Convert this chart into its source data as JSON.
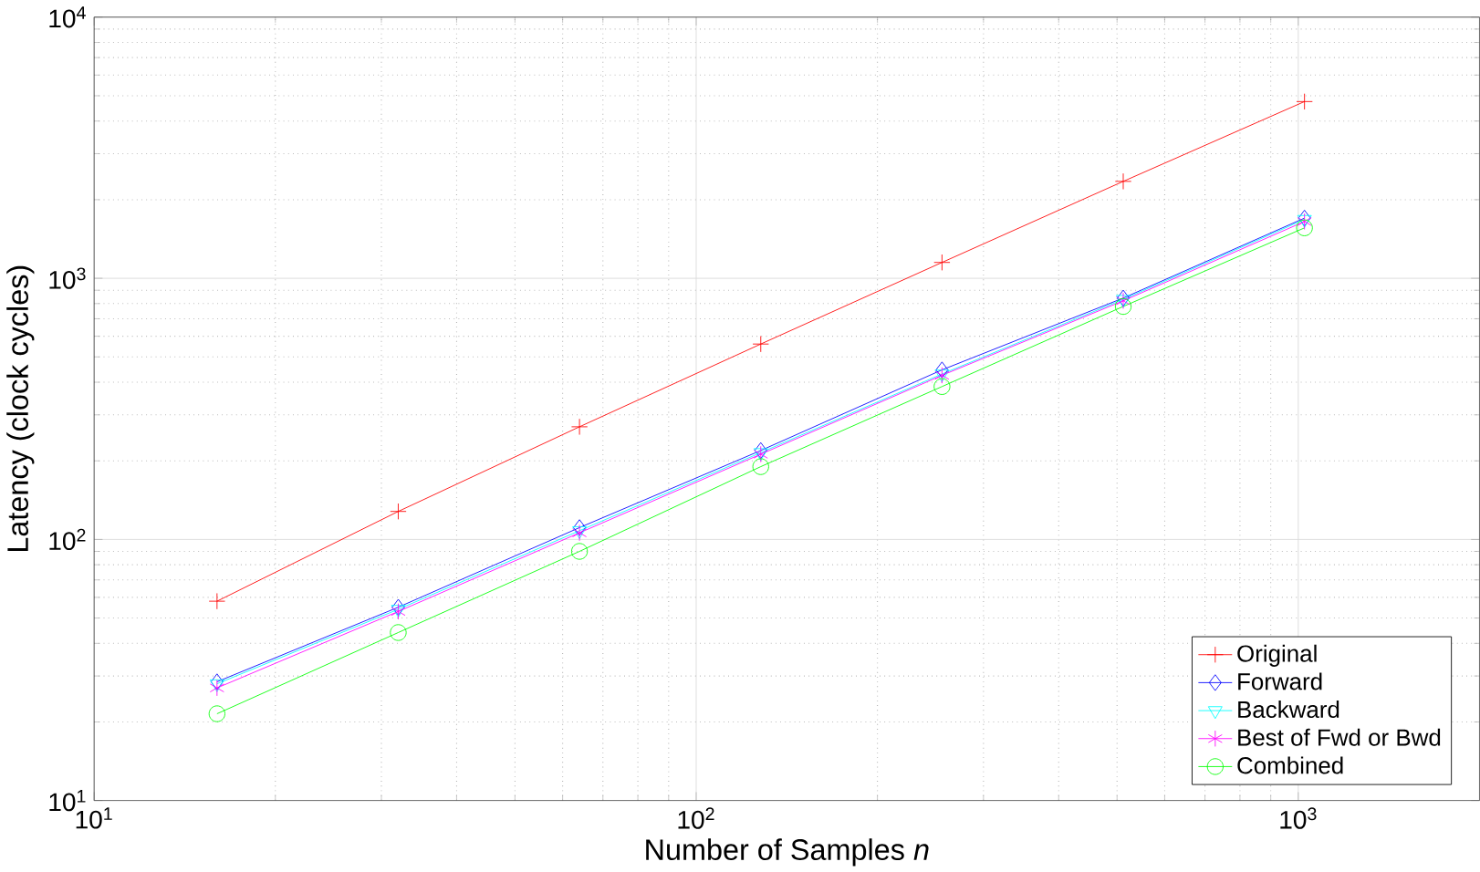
{
  "chart_data": {
    "type": "line",
    "xlabel": "Number of Samples     *n*",
    "ylabel": "Latency (clock cycles)",
    "log": "xy",
    "grid": true,
    "legend": "bottom right",
    "x": [
      16,
      32,
      64,
      128,
      256,
      512,
      1024
    ],
    "xlim": [
      10,
      2000
    ],
    "ylim": [
      10,
      10000
    ],
    "xticks": [
      {
        "value": 10,
        "label": "10$^{1}$"
      },
      {
        "value": 100,
        "label": "10$^{2}$"
      },
      {
        "value": 1000,
        "label": "10$^{3}$"
      }
    ],
    "yticks": [
      {
        "value": 10,
        "label": "10$^{1}$"
      },
      {
        "value": 100,
        "label": "10$^{2}$"
      },
      {
        "value": 1000,
        "label": "10$^{3}$"
      },
      {
        "value": 10000,
        "label": "10$^{4}$"
      }
    ],
    "series": [
      {
        "name": "Original",
        "color": "#ff0000",
        "marker": "cross",
        "values": [
          58,
          128,
          270,
          560,
          1150,
          2350,
          4750
        ]
      },
      {
        "name": "Forward",
        "color": "#0000ff",
        "marker": "diamond",
        "values": [
          28.5,
          55,
          111,
          219,
          446,
          840,
          1700
        ]
      },
      {
        "name": "Backward",
        "color": "#00ffff",
        "marker": "triangle",
        "values": [
          28,
          54,
          108,
          215,
          430,
          830,
          1680
        ]
      },
      {
        "name": "Best of Fwd or Bwd",
        "color": "#ff00ff",
        "marker": "cross",
        "values": [
          27,
          53,
          106,
          212,
          425,
          820,
          1650
        ]
      },
      {
        "name": "Combined",
        "color": "#00ff00",
        "marker": "circle",
        "values": [
          21.5,
          44,
          90,
          190,
          385,
          780,
          1560
        ]
      }
    ]
  }
}
